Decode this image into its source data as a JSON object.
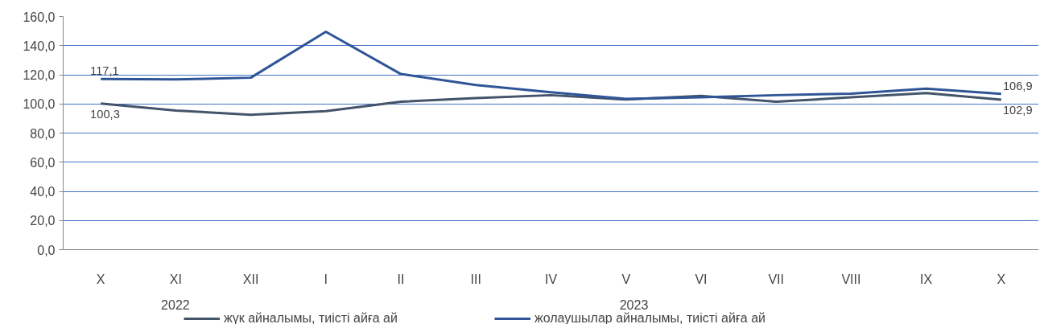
{
  "chart_data": {
    "type": "line",
    "categories": [
      "X",
      "XI",
      "XII",
      "I",
      "II",
      "III",
      "IV",
      "V",
      "VI",
      "VII",
      "VIII",
      "IX",
      "X"
    ],
    "series": [
      {
        "name": "жүк айналымы, тиісті айға ай",
        "color": "#44546a",
        "values": [
          100.3,
          95.5,
          92.5,
          95.0,
          101.5,
          104.0,
          106.0,
          103.0,
          105.5,
          101.5,
          104.5,
          107.5,
          102.9
        ],
        "value_labels": [
          "100,3",
          null,
          null,
          null,
          null,
          null,
          null,
          null,
          null,
          null,
          null,
          null,
          "102,9"
        ]
      },
      {
        "name": "жолаушылар айналымы, тиісті айға ай",
        "color": "#2f5597",
        "values": [
          117.1,
          116.8,
          118.0,
          149.5,
          120.5,
          113.0,
          108.0,
          103.5,
          104.5,
          106.0,
          107.0,
          110.5,
          106.9
        ],
        "value_labels": [
          "117,1",
          null,
          null,
          null,
          null,
          null,
          null,
          null,
          null,
          null,
          null,
          null,
          "106,9"
        ]
      }
    ],
    "ylim": [
      0,
      160
    ],
    "yticks": [
      {
        "value": 0,
        "label": "0,0"
      },
      {
        "value": 20,
        "label": "20,0"
      },
      {
        "value": 40,
        "label": "40,0"
      },
      {
        "value": 60,
        "label": "60,0"
      },
      {
        "value": 80,
        "label": "80,0"
      },
      {
        "value": 100,
        "label": "100,0"
      },
      {
        "value": 120,
        "label": "120,0"
      },
      {
        "value": 140,
        "label": "140,0"
      },
      {
        "value": 160,
        "label": "160,0"
      }
    ],
    "annotations": [
      "2022",
      "2023"
    ],
    "grid": "y",
    "legend": "bottom",
    "marker": "none",
    "line_style": "solid"
  }
}
